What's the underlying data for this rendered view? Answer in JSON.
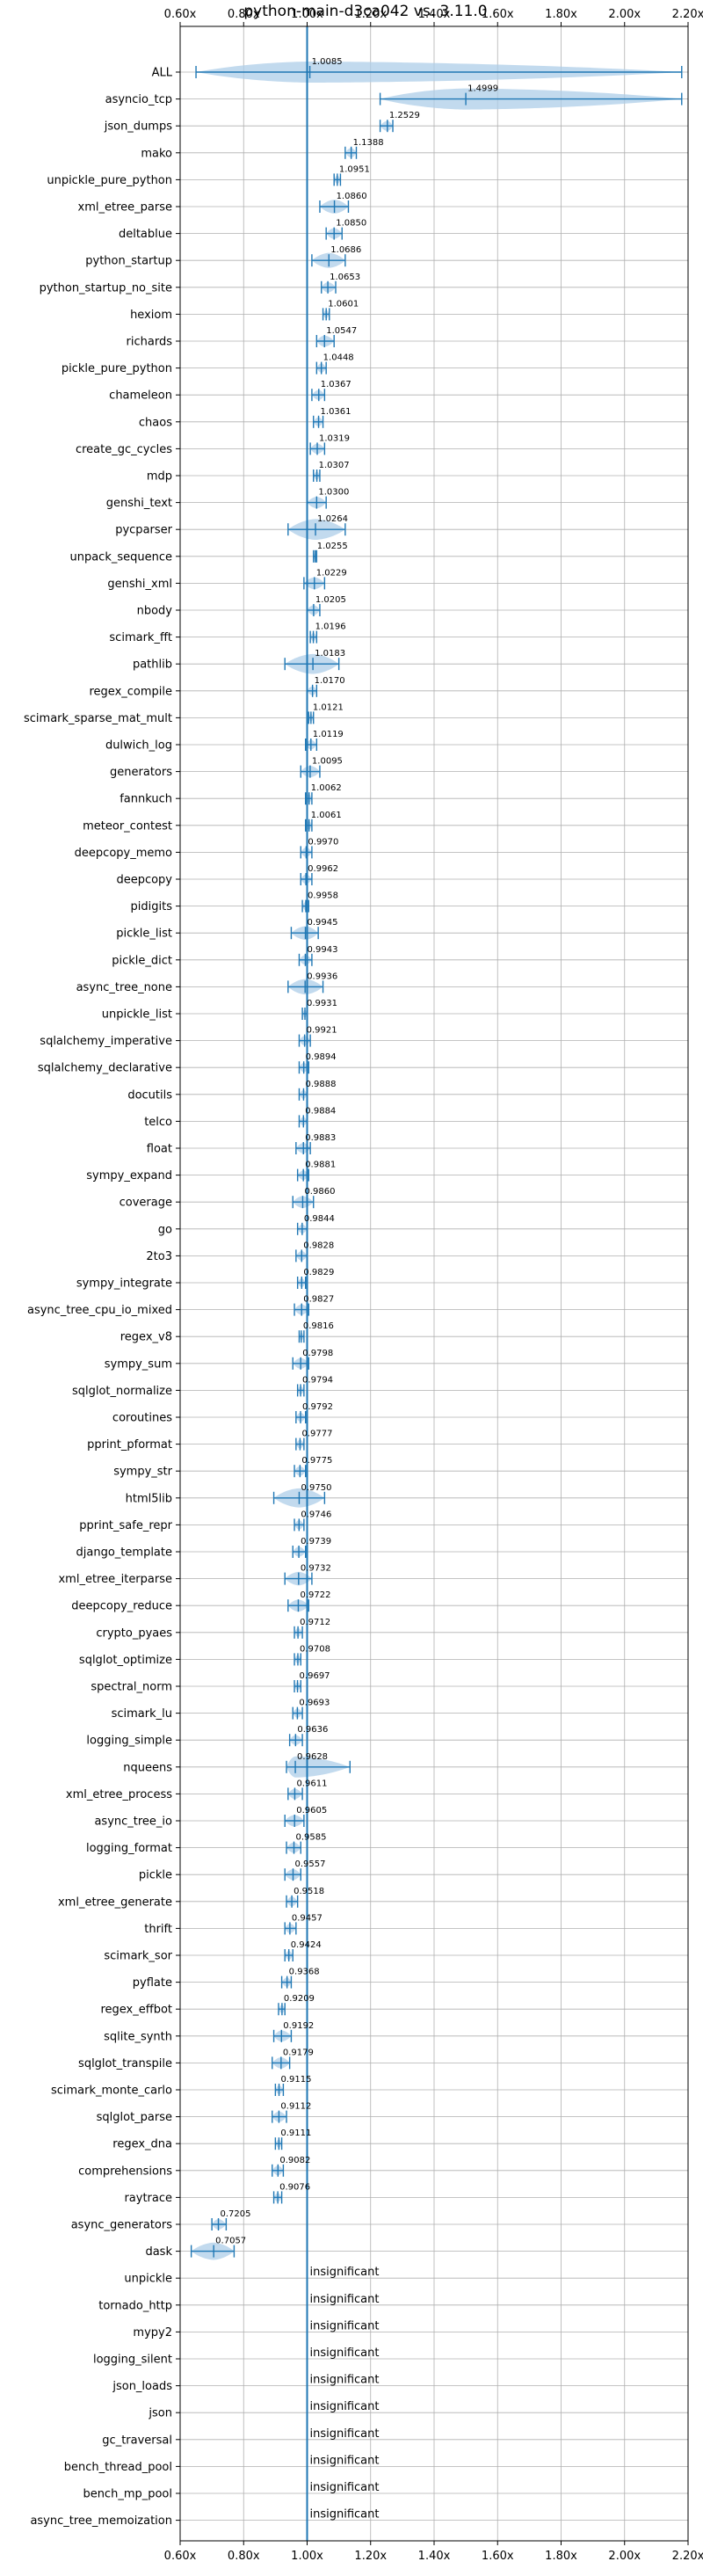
{
  "chart_data": {
    "type": "violin",
    "title": "python-main-d3ca042 vs. 3.11.0",
    "xlim": [
      0.6,
      2.2
    ],
    "x_ticks": [
      0.6,
      0.8,
      1.0,
      1.2,
      1.4,
      1.6,
      1.8,
      2.0,
      2.2
    ],
    "x_tick_labels": [
      "0.60x",
      "0.80x",
      "1.00x",
      "1.20x",
      "1.40x",
      "1.60x",
      "1.80x",
      "2.00x",
      "2.20x"
    ],
    "reference_line": 1.0,
    "grid": true,
    "colors": {
      "accent": "#1f77b4",
      "violin_fill": "#aecde8",
      "grid": "#b0b0b0"
    },
    "insignificant_text": "insignificant",
    "benchmarks": [
      {
        "name": "ALL",
        "value": 1.0085,
        "label": "1.0085",
        "min": 0.65,
        "max": 2.18
      },
      {
        "name": "asyncio_tcp",
        "value": 1.4999,
        "label": "1.4999",
        "min": 1.23,
        "max": 2.18
      },
      {
        "name": "json_dumps",
        "value": 1.2529,
        "label": "1.2529",
        "min": 1.23,
        "max": 1.27
      },
      {
        "name": "mako",
        "value": 1.1388,
        "label": "1.1388",
        "min": 1.12,
        "max": 1.155
      },
      {
        "name": "unpickle_pure_python",
        "value": 1.0951,
        "label": "1.0951",
        "min": 1.085,
        "max": 1.105
      },
      {
        "name": "xml_etree_parse",
        "value": 1.086,
        "label": "1.0860",
        "min": 1.04,
        "max": 1.13
      },
      {
        "name": "deltablue",
        "value": 1.085,
        "label": "1.0850",
        "min": 1.06,
        "max": 1.11
      },
      {
        "name": "python_startup",
        "value": 1.0686,
        "label": "1.0686",
        "min": 1.015,
        "max": 1.12
      },
      {
        "name": "python_startup_no_site",
        "value": 1.0653,
        "label": "1.0653",
        "min": 1.045,
        "max": 1.09
      },
      {
        "name": "hexiom",
        "value": 1.0601,
        "label": "1.0601",
        "min": 1.05,
        "max": 1.07
      },
      {
        "name": "richards",
        "value": 1.0547,
        "label": "1.0547",
        "min": 1.03,
        "max": 1.085
      },
      {
        "name": "pickle_pure_python",
        "value": 1.0448,
        "label": "1.0448",
        "min": 1.03,
        "max": 1.06
      },
      {
        "name": "chameleon",
        "value": 1.0367,
        "label": "1.0367",
        "min": 1.015,
        "max": 1.055
      },
      {
        "name": "chaos",
        "value": 1.0361,
        "label": "1.0361",
        "min": 1.02,
        "max": 1.05
      },
      {
        "name": "create_gc_cycles",
        "value": 1.0319,
        "label": "1.0319",
        "min": 1.01,
        "max": 1.055
      },
      {
        "name": "mdp",
        "value": 1.0307,
        "label": "1.0307",
        "min": 1.02,
        "max": 1.04
      },
      {
        "name": "genshi_text",
        "value": 1.03,
        "label": "1.0300",
        "min": 1.0,
        "max": 1.06
      },
      {
        "name": "pycparser",
        "value": 1.0264,
        "label": "1.0264",
        "min": 0.94,
        "max": 1.12
      },
      {
        "name": "unpack_sequence",
        "value": 1.0255,
        "label": "1.0255",
        "min": 1.02,
        "max": 1.03
      },
      {
        "name": "genshi_xml",
        "value": 1.0229,
        "label": "1.0229",
        "min": 0.99,
        "max": 1.055
      },
      {
        "name": "nbody",
        "value": 1.0205,
        "label": "1.0205",
        "min": 1.0,
        "max": 1.04
      },
      {
        "name": "scimark_fft",
        "value": 1.0196,
        "label": "1.0196",
        "min": 1.01,
        "max": 1.03
      },
      {
        "name": "pathlib",
        "value": 1.0183,
        "label": "1.0183",
        "min": 0.93,
        "max": 1.1
      },
      {
        "name": "regex_compile",
        "value": 1.017,
        "label": "1.0170",
        "min": 1.0,
        "max": 1.03
      },
      {
        "name": "scimark_sparse_mat_mult",
        "value": 1.0121,
        "label": "1.0121",
        "min": 1.005,
        "max": 1.02
      },
      {
        "name": "dulwich_log",
        "value": 1.0119,
        "label": "1.0119",
        "min": 0.995,
        "max": 1.03
      },
      {
        "name": "generators",
        "value": 1.0095,
        "label": "1.0095",
        "min": 0.98,
        "max": 1.04
      },
      {
        "name": "fannkuch",
        "value": 1.0062,
        "label": "1.0062",
        "min": 0.995,
        "max": 1.015
      },
      {
        "name": "meteor_contest",
        "value": 1.0061,
        "label": "1.0061",
        "min": 0.995,
        "max": 1.015
      },
      {
        "name": "deepcopy_memo",
        "value": 0.997,
        "label": "0.9970",
        "min": 0.98,
        "max": 1.015
      },
      {
        "name": "deepcopy",
        "value": 0.9962,
        "label": "0.9962",
        "min": 0.98,
        "max": 1.015
      },
      {
        "name": "pidigits",
        "value": 0.9958,
        "label": "0.9958",
        "min": 0.985,
        "max": 1.005
      },
      {
        "name": "pickle_list",
        "value": 0.9945,
        "label": "0.9945",
        "min": 0.95,
        "max": 1.035
      },
      {
        "name": "pickle_dict",
        "value": 0.9943,
        "label": "0.9943",
        "min": 0.975,
        "max": 1.015
      },
      {
        "name": "async_tree_none",
        "value": 0.9936,
        "label": "0.9936",
        "min": 0.94,
        "max": 1.05
      },
      {
        "name": "unpickle_list",
        "value": 0.9931,
        "label": "0.9931",
        "min": 0.985,
        "max": 1.0
      },
      {
        "name": "sqlalchemy_imperative",
        "value": 0.9921,
        "label": "0.9921",
        "min": 0.975,
        "max": 1.01
      },
      {
        "name": "sqlalchemy_declarative",
        "value": 0.9894,
        "label": "0.9894",
        "min": 0.975,
        "max": 1.005
      },
      {
        "name": "docutils",
        "value": 0.9888,
        "label": "0.9888",
        "min": 0.975,
        "max": 1.0
      },
      {
        "name": "telco",
        "value": 0.9884,
        "label": "0.9884",
        "min": 0.975,
        "max": 1.0
      },
      {
        "name": "float",
        "value": 0.9883,
        "label": "0.9883",
        "min": 0.965,
        "max": 1.01
      },
      {
        "name": "sympy_expand",
        "value": 0.9881,
        "label": "0.9881",
        "min": 0.97,
        "max": 1.005
      },
      {
        "name": "coverage",
        "value": 0.986,
        "label": "0.9860",
        "min": 0.955,
        "max": 1.02
      },
      {
        "name": "go",
        "value": 0.9844,
        "label": "0.9844",
        "min": 0.97,
        "max": 1.0
      },
      {
        "name": "2to3",
        "value": 0.9828,
        "label": "0.9828",
        "min": 0.965,
        "max": 1.0
      },
      {
        "name": "sympy_integrate",
        "value": 0.9829,
        "label": "0.9829",
        "min": 0.97,
        "max": 0.995
      },
      {
        "name": "async_tree_cpu_io_mixed",
        "value": 0.9827,
        "label": "0.9827",
        "min": 0.96,
        "max": 1.005
      },
      {
        "name": "regex_v8",
        "value": 0.9816,
        "label": "0.9816",
        "min": 0.975,
        "max": 0.99
      },
      {
        "name": "sympy_sum",
        "value": 0.9798,
        "label": "0.9798",
        "min": 0.955,
        "max": 1.005
      },
      {
        "name": "sqlglot_normalize",
        "value": 0.9794,
        "label": "0.9794",
        "min": 0.97,
        "max": 0.99
      },
      {
        "name": "coroutines",
        "value": 0.9792,
        "label": "0.9792",
        "min": 0.965,
        "max": 0.995
      },
      {
        "name": "pprint_pformat",
        "value": 0.9777,
        "label": "0.9777",
        "min": 0.965,
        "max": 0.99
      },
      {
        "name": "sympy_str",
        "value": 0.9775,
        "label": "0.9775",
        "min": 0.96,
        "max": 0.995
      },
      {
        "name": "html5lib",
        "value": 0.975,
        "label": "0.9750",
        "min": 0.895,
        "max": 1.055
      },
      {
        "name": "pprint_safe_repr",
        "value": 0.9746,
        "label": "0.9746",
        "min": 0.96,
        "max": 0.99
      },
      {
        "name": "django_template",
        "value": 0.9739,
        "label": "0.9739",
        "min": 0.955,
        "max": 0.995
      },
      {
        "name": "xml_etree_iterparse",
        "value": 0.9732,
        "label": "0.9732",
        "min": 0.93,
        "max": 1.015
      },
      {
        "name": "deepcopy_reduce",
        "value": 0.9722,
        "label": "0.9722",
        "min": 0.94,
        "max": 1.005
      },
      {
        "name": "crypto_pyaes",
        "value": 0.9712,
        "label": "0.9712",
        "min": 0.96,
        "max": 0.985
      },
      {
        "name": "sqlglot_optimize",
        "value": 0.9708,
        "label": "0.9708",
        "min": 0.96,
        "max": 0.98
      },
      {
        "name": "spectral_norm",
        "value": 0.9697,
        "label": "0.9697",
        "min": 0.96,
        "max": 0.98
      },
      {
        "name": "scimark_lu",
        "value": 0.9693,
        "label": "0.9693",
        "min": 0.955,
        "max": 0.985
      },
      {
        "name": "logging_simple",
        "value": 0.9636,
        "label": "0.9636",
        "min": 0.945,
        "max": 0.985
      },
      {
        "name": "nqueens",
        "value": 0.9628,
        "label": "0.9628",
        "min": 0.935,
        "max": 1.135
      },
      {
        "name": "xml_etree_process",
        "value": 0.9611,
        "label": "0.9611",
        "min": 0.94,
        "max": 0.985
      },
      {
        "name": "async_tree_io",
        "value": 0.9605,
        "label": "0.9605",
        "min": 0.93,
        "max": 0.99
      },
      {
        "name": "logging_format",
        "value": 0.9585,
        "label": "0.9585",
        "min": 0.935,
        "max": 0.98
      },
      {
        "name": "pickle",
        "value": 0.9557,
        "label": "0.9557",
        "min": 0.93,
        "max": 0.98
      },
      {
        "name": "xml_etree_generate",
        "value": 0.9518,
        "label": "0.9518",
        "min": 0.935,
        "max": 0.97
      },
      {
        "name": "thrift",
        "value": 0.9457,
        "label": "0.9457",
        "min": 0.93,
        "max": 0.965
      },
      {
        "name": "scimark_sor",
        "value": 0.9424,
        "label": "0.9424",
        "min": 0.93,
        "max": 0.955
      },
      {
        "name": "pyflate",
        "value": 0.9368,
        "label": "0.9368",
        "min": 0.92,
        "max": 0.95
      },
      {
        "name": "regex_effbot",
        "value": 0.9209,
        "label": "0.9209",
        "min": 0.91,
        "max": 0.93
      },
      {
        "name": "sqlite_synth",
        "value": 0.9192,
        "label": "0.9192",
        "min": 0.895,
        "max": 0.95
      },
      {
        "name": "sqlglot_transpile",
        "value": 0.9179,
        "label": "0.9179",
        "min": 0.89,
        "max": 0.945
      },
      {
        "name": "scimark_monte_carlo",
        "value": 0.9115,
        "label": "0.9115",
        "min": 0.9,
        "max": 0.925
      },
      {
        "name": "sqlglot_parse",
        "value": 0.9112,
        "label": "0.9112",
        "min": 0.89,
        "max": 0.935
      },
      {
        "name": "regex_dna",
        "value": 0.9111,
        "label": "0.9111",
        "min": 0.9,
        "max": 0.92
      },
      {
        "name": "comprehensions",
        "value": 0.9082,
        "label": "0.9082",
        "min": 0.89,
        "max": 0.925
      },
      {
        "name": "raytrace",
        "value": 0.9076,
        "label": "0.9076",
        "min": 0.895,
        "max": 0.92
      },
      {
        "name": "async_generators",
        "value": 0.7205,
        "label": "0.7205",
        "min": 0.7,
        "max": 0.745
      },
      {
        "name": "dask",
        "value": 0.7057,
        "label": "0.7057",
        "min": 0.635,
        "max": 0.77
      },
      {
        "name": "unpickle",
        "insignificant": true
      },
      {
        "name": "tornado_http",
        "insignificant": true
      },
      {
        "name": "mypy2",
        "insignificant": true
      },
      {
        "name": "logging_silent",
        "insignificant": true
      },
      {
        "name": "json_loads",
        "insignificant": true
      },
      {
        "name": "json",
        "insignificant": true
      },
      {
        "name": "gc_traversal",
        "insignificant": true
      },
      {
        "name": "bench_thread_pool",
        "insignificant": true
      },
      {
        "name": "bench_mp_pool",
        "insignificant": true
      },
      {
        "name": "async_tree_memoization",
        "insignificant": true
      }
    ]
  }
}
